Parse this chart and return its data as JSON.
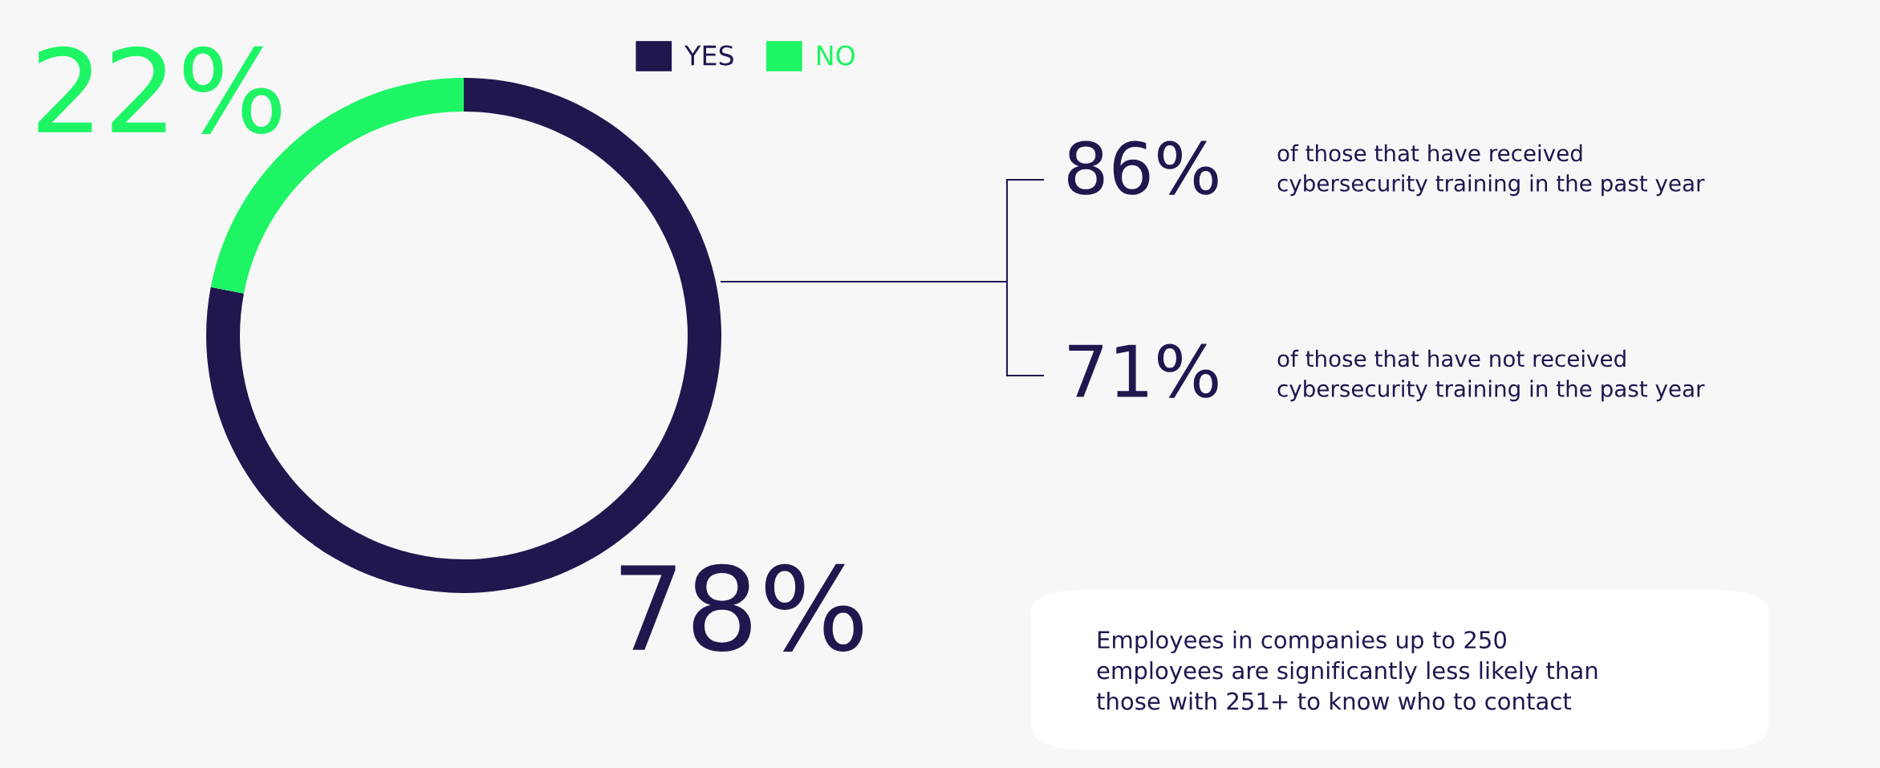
{
  "chart_data": {
    "type": "donut",
    "categories": [
      "YES",
      "NO"
    ],
    "values": [
      78,
      22
    ],
    "colors": [
      "#22164f",
      "#1ef565"
    ],
    "value_labels": [
      "78%",
      "22%"
    ],
    "legend": "top",
    "annotations": [
      "86%",
      "of those that have received\ncybersecurity training in the past year",
      "71%",
      "of those that have not received\ncybersecurity training in the past year",
      "Employees in companies up to 250\nemployees are significantly less likely than\nthose with 251+ to know who to contact"
    ]
  }
}
